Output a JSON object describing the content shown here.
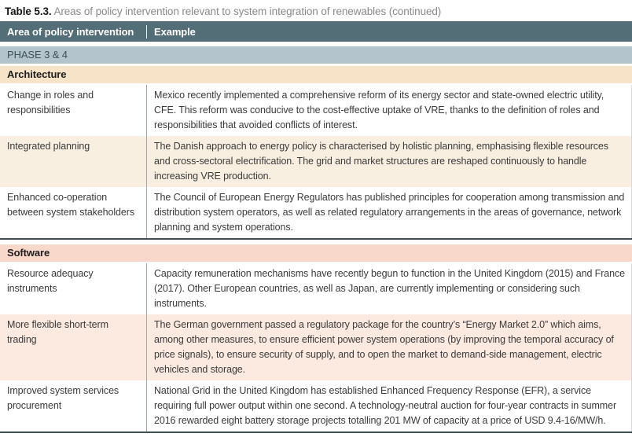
{
  "page": {
    "title_label": "Table 5.3.",
    "title_text": "Areas of policy intervention relevant to system integration of renewables (continued)"
  },
  "table": {
    "header": {
      "col_area": "Area of policy intervention",
      "col_example": "Example"
    },
    "phase_banner": "PHASE 3 & 4",
    "sections": [
      {
        "name": "Architecture",
        "rows": [
          {
            "area": "Change in roles and responsibilities",
            "example": "Mexico recently implemented a comprehensive reform of its energy sector and state-owned electric utility, CFE. This reform was conducive to the cost-effective uptake of VRE, thanks to the definition of roles and responsibilities that avoided conflicts of interest."
          },
          {
            "area": "Integrated planning",
            "example": "The Danish approach to energy policy is characterised by holistic planning, emphasising flexible resources and cross-sectoral electrification. The grid and market structures are reshaped continuously to handle increasing VRE production."
          },
          {
            "area": "Enhanced co-operation between system stakeholders",
            "example": "The Council of European Energy Regulators has published principles for cooperation among transmission and distribution system operators, as well as related regulatory arrangements in the areas of governance, network planning and system operations."
          }
        ]
      },
      {
        "name": "Software",
        "rows": [
          {
            "area": "Resource adequacy instruments",
            "example": "Capacity remuneration mechanisms have recently begun to function in the United Kingdom (2015) and France (2017). Other European countries, as well as Japan, are currently implementing or considering such instruments."
          },
          {
            "area": "More flexible short-term trading",
            "example": "The German government passed a regulatory package for the country’s “Energy Market 2.0” which aims, among other measures, to ensure efficient power system operations (by improving the temporal accuracy of price signals), to ensure security of supply, and to open the market to demand-side management, electric vehicles and storage."
          },
          {
            "area": "Improved system services procurement",
            "example": "National Grid in the United Kingdom has established Enhanced Frequency Response (EFR), a service requiring full power output within one second. A technology-neutral auction for four-year contracts in summer 2016 rewarded eight battery storage projects totalling 201 MW of capacity at a price of USD 9.4-16/MW/h."
          }
        ]
      }
    ]
  },
  "colors": {
    "header_bg": "#546E78",
    "header_text": "#FFFFFF",
    "phase_bg": "#B3C4CD",
    "architecture_section_bg": "#F7E4C8",
    "software_section_bg": "#F8D8CA",
    "architecture_row_tint": "#F9EFE0",
    "software_row_tint": "#FCEAE1",
    "dark_rule": "#3F4E55",
    "title_gray": "#8A8A8A"
  }
}
